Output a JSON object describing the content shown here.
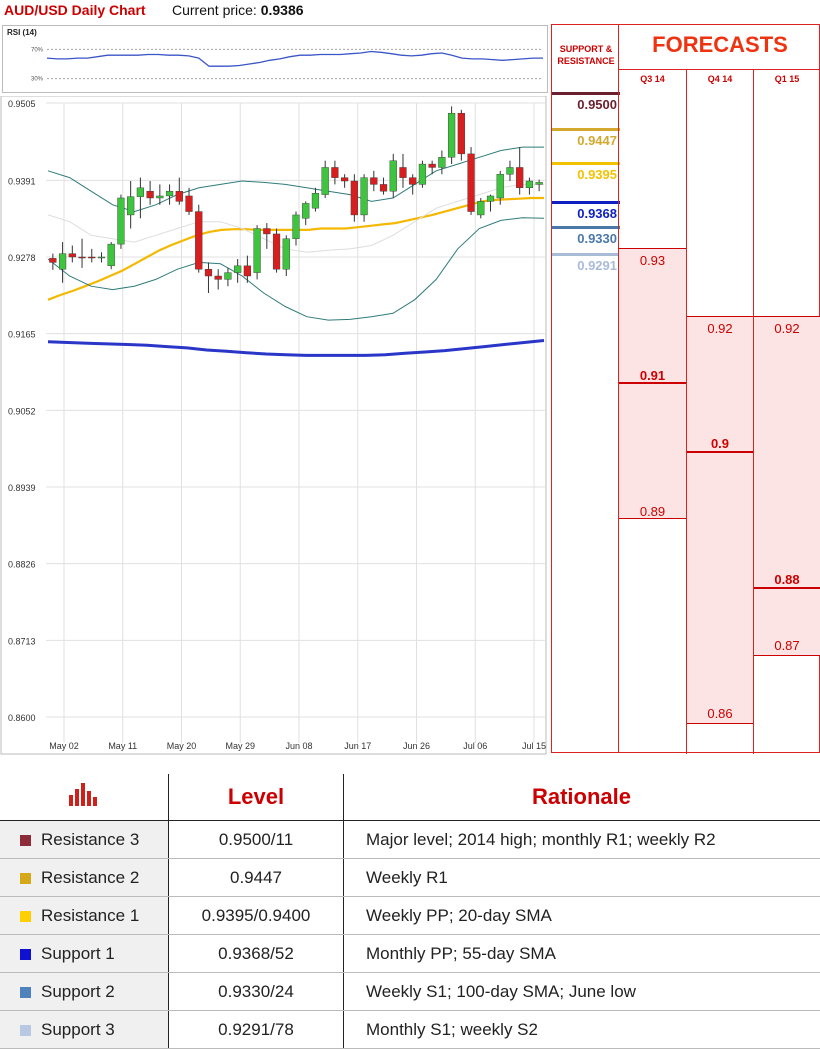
{
  "header": {
    "title": "AUD/USD Daily Chart",
    "price_label": "Current price:",
    "price_value": "0.9386"
  },
  "rsi": {
    "label": "RSI (14)",
    "levels": [
      "70%",
      "30%"
    ],
    "values": [
      58,
      57,
      57,
      58,
      58,
      60,
      62,
      62,
      62,
      62,
      63,
      63,
      62,
      62,
      61,
      58,
      47,
      47,
      47,
      48,
      50,
      52,
      55,
      57,
      60,
      62,
      62,
      63,
      63,
      63,
      64,
      65,
      67,
      66,
      64,
      62,
      61,
      62,
      64,
      65,
      62,
      58,
      57,
      57,
      56,
      55,
      56,
      57,
      58,
      58
    ]
  },
  "chart_data": {
    "type": "candlestick",
    "title": "AUD/USD Daily Chart",
    "y_ticks": [
      "0.9505",
      "0.9391",
      "0.9278",
      "0.9165",
      "0.9052",
      "0.8939",
      "0.8826",
      "0.8713",
      "0.8600"
    ],
    "ylim": [
      0.86,
      0.9505
    ],
    "x_labels": [
      "May 02",
      "May 11",
      "May 20",
      "May 29",
      "Jun 08",
      "Jun 17",
      "Jun 26",
      "Jul 06",
      "Jul 15"
    ],
    "grid": true,
    "candles": [
      {
        "o": 0.9276,
        "h": 0.9283,
        "l": 0.9259,
        "c": 0.927
      },
      {
        "o": 0.926,
        "h": 0.93,
        "l": 0.924,
        "c": 0.9283
      },
      {
        "o": 0.9283,
        "h": 0.9295,
        "l": 0.927,
        "c": 0.9278
      },
      {
        "o": 0.9278,
        "h": 0.9305,
        "l": 0.9262,
        "c": 0.9277
      },
      {
        "o": 0.9278,
        "h": 0.929,
        "l": 0.927,
        "c": 0.9277
      },
      {
        "o": 0.9277,
        "h": 0.9285,
        "l": 0.927,
        "c": 0.9278
      },
      {
        "o": 0.9265,
        "h": 0.93,
        "l": 0.926,
        "c": 0.9297
      },
      {
        "o": 0.9297,
        "h": 0.937,
        "l": 0.929,
        "c": 0.9365
      },
      {
        "o": 0.934,
        "h": 0.939,
        "l": 0.932,
        "c": 0.9367
      },
      {
        "o": 0.9367,
        "h": 0.9395,
        "l": 0.9335,
        "c": 0.938
      },
      {
        "o": 0.9375,
        "h": 0.939,
        "l": 0.9355,
        "c": 0.9365
      },
      {
        "o": 0.9365,
        "h": 0.9385,
        "l": 0.9355,
        "c": 0.9368
      },
      {
        "o": 0.9368,
        "h": 0.9385,
        "l": 0.9355,
        "c": 0.9375
      },
      {
        "o": 0.9375,
        "h": 0.9395,
        "l": 0.9355,
        "c": 0.936
      },
      {
        "o": 0.9368,
        "h": 0.938,
        "l": 0.934,
        "c": 0.9345
      },
      {
        "o": 0.9345,
        "h": 0.9355,
        "l": 0.9255,
        "c": 0.926
      },
      {
        "o": 0.926,
        "h": 0.927,
        "l": 0.9225,
        "c": 0.925
      },
      {
        "o": 0.925,
        "h": 0.926,
        "l": 0.923,
        "c": 0.9245
      },
      {
        "o": 0.9245,
        "h": 0.9262,
        "l": 0.9235,
        "c": 0.9255
      },
      {
        "o": 0.9255,
        "h": 0.9275,
        "l": 0.924,
        "c": 0.9265
      },
      {
        "o": 0.9265,
        "h": 0.928,
        "l": 0.924,
        "c": 0.925
      },
      {
        "o": 0.9255,
        "h": 0.9325,
        "l": 0.9245,
        "c": 0.932
      },
      {
        "o": 0.932,
        "h": 0.9328,
        "l": 0.929,
        "c": 0.9312
      },
      {
        "o": 0.9312,
        "h": 0.932,
        "l": 0.9255,
        "c": 0.926
      },
      {
        "o": 0.926,
        "h": 0.931,
        "l": 0.925,
        "c": 0.9305
      },
      {
        "o": 0.9305,
        "h": 0.9345,
        "l": 0.9295,
        "c": 0.934
      },
      {
        "o": 0.9335,
        "h": 0.936,
        "l": 0.9325,
        "c": 0.9357
      },
      {
        "o": 0.935,
        "h": 0.938,
        "l": 0.9345,
        "c": 0.9372
      },
      {
        "o": 0.937,
        "h": 0.942,
        "l": 0.9365,
        "c": 0.941
      },
      {
        "o": 0.941,
        "h": 0.942,
        "l": 0.9385,
        "c": 0.9395
      },
      {
        "o": 0.9395,
        "h": 0.94,
        "l": 0.938,
        "c": 0.939
      },
      {
        "o": 0.939,
        "h": 0.94,
        "l": 0.933,
        "c": 0.934
      },
      {
        "o": 0.934,
        "h": 0.94,
        "l": 0.933,
        "c": 0.9395
      },
      {
        "o": 0.9395,
        "h": 0.9405,
        "l": 0.9375,
        "c": 0.9385
      },
      {
        "o": 0.9385,
        "h": 0.9395,
        "l": 0.937,
        "c": 0.9375
      },
      {
        "o": 0.9375,
        "h": 0.943,
        "l": 0.9365,
        "c": 0.942
      },
      {
        "o": 0.941,
        "h": 0.943,
        "l": 0.938,
        "c": 0.9395
      },
      {
        "o": 0.9395,
        "h": 0.94,
        "l": 0.937,
        "c": 0.9385
      },
      {
        "o": 0.9385,
        "h": 0.942,
        "l": 0.938,
        "c": 0.9415
      },
      {
        "o": 0.9415,
        "h": 0.942,
        "l": 0.94,
        "c": 0.941
      },
      {
        "o": 0.941,
        "h": 0.9435,
        "l": 0.94,
        "c": 0.9425
      },
      {
        "o": 0.9425,
        "h": 0.95,
        "l": 0.9415,
        "c": 0.949
      },
      {
        "o": 0.949,
        "h": 0.9495,
        "l": 0.942,
        "c": 0.943
      },
      {
        "o": 0.943,
        "h": 0.944,
        "l": 0.934,
        "c": 0.9345
      },
      {
        "o": 0.934,
        "h": 0.9365,
        "l": 0.9335,
        "c": 0.936
      },
      {
        "o": 0.936,
        "h": 0.937,
        "l": 0.9345,
        "c": 0.9368
      },
      {
        "o": 0.9365,
        "h": 0.9405,
        "l": 0.9355,
        "c": 0.94
      },
      {
        "o": 0.94,
        "h": 0.942,
        "l": 0.939,
        "c": 0.941
      },
      {
        "o": 0.941,
        "h": 0.944,
        "l": 0.937,
        "c": 0.938
      },
      {
        "o": 0.938,
        "h": 0.9395,
        "l": 0.937,
        "c": 0.939
      },
      {
        "o": 0.9385,
        "h": 0.9392,
        "l": 0.9375,
        "c": 0.9388
      }
    ],
    "lines": [
      {
        "color": "#f5b800",
        "values": [
          0.9215,
          0.9222,
          0.9228,
          0.9235,
          0.9242,
          0.925,
          0.9258,
          0.9268,
          0.9278,
          0.9288,
          0.9296,
          0.9303,
          0.931,
          0.9315,
          0.9318,
          0.9319,
          0.9319,
          0.9318,
          0.9318,
          0.9318,
          0.9318,
          0.9318,
          0.932,
          0.932,
          0.932,
          0.9322,
          0.9324,
          0.9326,
          0.9328,
          0.9332,
          0.9336,
          0.934,
          0.9345,
          0.935,
          0.9355,
          0.936,
          0.9362,
          0.9363,
          0.9364,
          0.9365,
          0.9365
        ]
      },
      {
        "color": "#2a36c8",
        "values": [
          0.9153,
          0.9152,
          0.9151,
          0.915,
          0.9149,
          0.9148,
          0.9146,
          0.9144,
          0.9141,
          0.9139,
          0.9137,
          0.9135,
          0.9134,
          0.9133,
          0.9133,
          0.9133,
          0.9133,
          0.9134,
          0.9136,
          0.9138,
          0.914,
          0.9143,
          0.9146,
          0.9149,
          0.9152,
          0.9155
        ]
      },
      {
        "color": "#2f7b7b",
        "values": [
          0.9405,
          0.9395,
          0.9375,
          0.9355,
          0.9345,
          0.9355,
          0.937,
          0.938,
          0.9385,
          0.939,
          0.9388,
          0.9385,
          0.938,
          0.9375,
          0.937,
          0.936,
          0.9365,
          0.9385,
          0.9405,
          0.9415,
          0.9425,
          0.9435,
          0.944,
          0.944
        ]
      },
      {
        "color": "#2f7b7b",
        "values": [
          0.9275,
          0.925,
          0.9235,
          0.923,
          0.9235,
          0.9245,
          0.926,
          0.927,
          0.9268,
          0.925,
          0.9225,
          0.9205,
          0.919,
          0.9185,
          0.9186,
          0.919,
          0.9195,
          0.9215,
          0.9245,
          0.929,
          0.932,
          0.9332,
          0.9336,
          0.9335
        ]
      },
      {
        "color": "#dddddd",
        "values": [
          0.934,
          0.933,
          0.931,
          0.9305,
          0.93,
          0.931,
          0.932,
          0.933,
          0.933,
          0.932,
          0.9305,
          0.929,
          0.9285,
          0.9288,
          0.929,
          0.9295,
          0.931,
          0.933,
          0.935,
          0.936,
          0.937,
          0.938,
          0.9385,
          0.9385
        ]
      }
    ]
  },
  "support_resistance": {
    "title": "SUPPORT & RESISTANCE",
    "levels": [
      {
        "value": "0.9500",
        "color": "#6b1f2e"
      },
      {
        "value": "0.9447",
        "color": "#d4a82e"
      },
      {
        "value": "0.9395",
        "color": "#f2c200"
      },
      {
        "value": "0.9368",
        "color": "#1020c0"
      },
      {
        "value": "0.9330",
        "color": "#4a78a8"
      },
      {
        "value": "0.9291",
        "color": "#a8bcd8"
      }
    ]
  },
  "forecasts": {
    "title": "FORECASTS",
    "columns": [
      {
        "label": "Q3 14",
        "high": "0.93",
        "median": "0.91",
        "low": "0.89"
      },
      {
        "label": "Q4 14",
        "high": "0.92",
        "median": "0.9",
        "low": "0.86"
      },
      {
        "label": "Q1 15",
        "high": "0.92",
        "median": "0.88",
        "low": "0.87"
      }
    ]
  },
  "table": {
    "headers": {
      "level": "Level",
      "rationale": "Rationale"
    },
    "rows": [
      {
        "name": "Resistance 3",
        "color": "#8b2c38",
        "level": "0.9500/11",
        "rationale": "Major level; 2014 high; monthly R1; weekly R2"
      },
      {
        "name": "Resistance 2",
        "color": "#d4a817",
        "level": "0.9447",
        "rationale": "Weekly R1"
      },
      {
        "name": "Resistance 1",
        "color": "#ffd000",
        "level": "0.9395/0.9400",
        "rationale": "Weekly PP; 20-day SMA"
      },
      {
        "name": "Support 1",
        "color": "#1010d0",
        "level": "0.9368/52",
        "rationale": "Monthly PP; 55-day SMA"
      },
      {
        "name": "Support 2",
        "color": "#4f81bd",
        "level": "0.9330/24",
        "rationale": "Weekly S1; 100-day SMA; June low"
      },
      {
        "name": "Support 3",
        "color": "#b8c8e2",
        "level": "0.9291/78",
        "rationale": "Monthly S1; weekly S2"
      }
    ]
  }
}
